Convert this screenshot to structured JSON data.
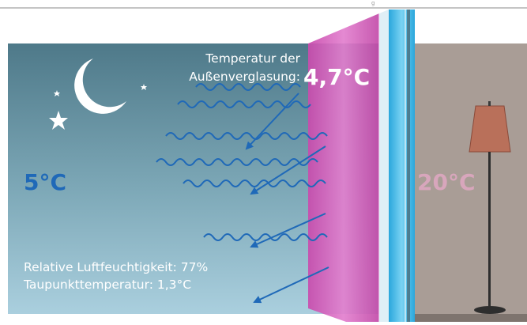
{
  "outside_temperature": "5°C",
  "inside_temperature": "20°C",
  "outer_pane_label_line1": "Temperatur der",
  "outer_pane_label_line2": "Außenverglasung:",
  "outer_pane_temperature": "4,7°C",
  "humidity_text": "Relative Luftfeuchtigkeit: 77%",
  "dew_point_text": "Taupunkttemperatur: 1,3°C",
  "colors": {
    "sky_top": "#4f7a8a",
    "sky_bottom": "#a6cbdb",
    "room_wall": "#a99d96",
    "outer_pane": "#d14fb5",
    "inner_pane": "#3fb8e6",
    "arrow_blue": "#1f69b8",
    "outside_temp_text": "#1f69b8",
    "inside_temp_text": "#d8a6bc",
    "lamp_shade": "#b86a55"
  },
  "icons": [
    "moon-icon",
    "star-icon",
    "floor-lamp-icon",
    "wavy-arrow-icon"
  ]
}
